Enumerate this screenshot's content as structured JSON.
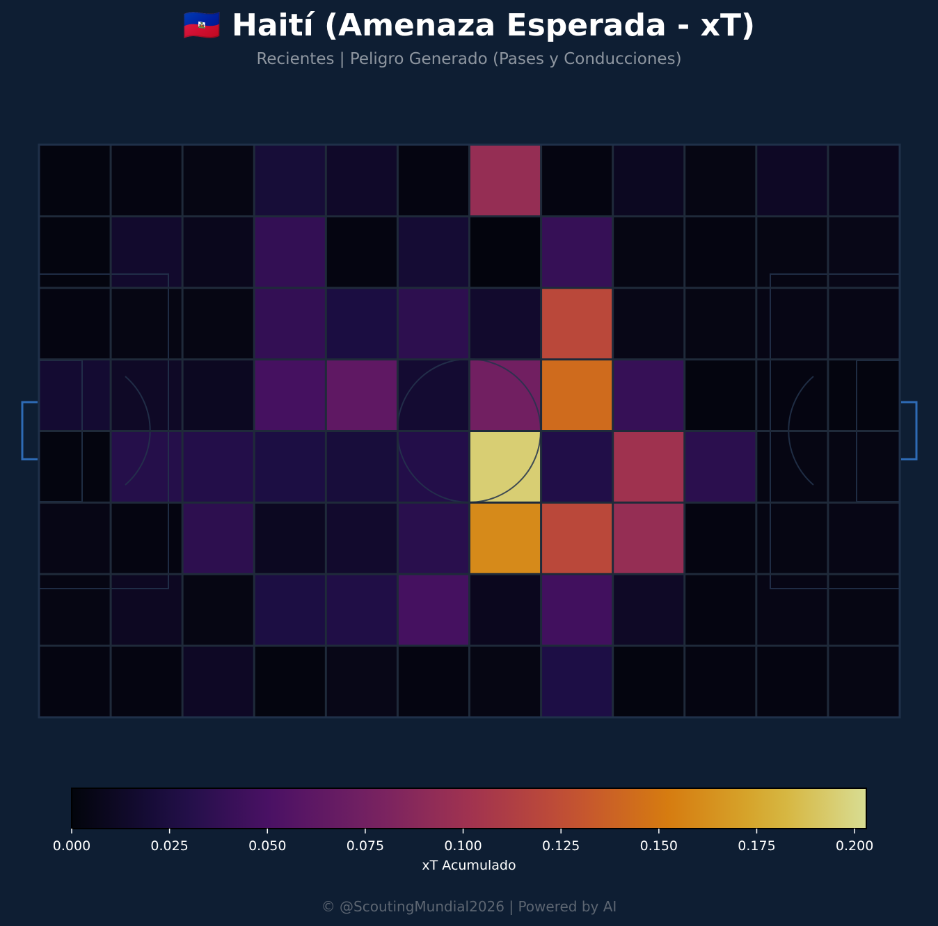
{
  "title": "🇭🇹 Haití (Amenaza Esperada - xT)",
  "subtitle": "Recientes | Peligro Generado (Pases y Conducciones)",
  "footer": "© @ScoutingMundial2026 | Powered by AI",
  "chart_data": {
    "type": "heatmap",
    "colormap": "inferno",
    "grid": {
      "cols": 12,
      "rows": 8
    },
    "vmin": 0,
    "vmax": 0.203,
    "values": [
      [
        0.002,
        0.003,
        0.004,
        0.021,
        0.014,
        0.003,
        0.095,
        0.003,
        0.01,
        0.004,
        0.012,
        0.008
      ],
      [
        0.002,
        0.016,
        0.008,
        0.038,
        0.003,
        0.019,
        0.001,
        0.04,
        0.004,
        0.003,
        0.004,
        0.006
      ],
      [
        0.003,
        0.004,
        0.004,
        0.038,
        0.025,
        0.035,
        0.016,
        0.121,
        0.006,
        0.004,
        0.005,
        0.005
      ],
      [
        0.018,
        0.013,
        0.01,
        0.048,
        0.063,
        0.018,
        0.074,
        0.143,
        0.04,
        0.002,
        0.003,
        0.002
      ],
      [
        0.002,
        0.031,
        0.03,
        0.026,
        0.022,
        0.03,
        0.195,
        0.029,
        0.101,
        0.034,
        0.004,
        0.004
      ],
      [
        0.005,
        0.003,
        0.035,
        0.01,
        0.016,
        0.033,
        0.16,
        0.121,
        0.095,
        0.003,
        0.004,
        0.005
      ],
      [
        0.004,
        0.011,
        0.004,
        0.026,
        0.028,
        0.048,
        0.009,
        0.046,
        0.013,
        0.003,
        0.005,
        0.004
      ],
      [
        0.003,
        0.003,
        0.012,
        0.002,
        0.006,
        0.003,
        0.004,
        0.027,
        0.002,
        0.003,
        0.003,
        0.004
      ]
    ],
    "colorbar": {
      "label": "xT Acumulado",
      "ticks": [
        0.0,
        0.025,
        0.05,
        0.075,
        0.1,
        0.125,
        0.15,
        0.175,
        0.2
      ],
      "tick_labels": [
        "0.000",
        "0.025",
        "0.050",
        "0.075",
        "0.100",
        "0.125",
        "0.150",
        "0.175",
        "0.200"
      ],
      "orientation": "horizontal"
    },
    "xlabel": "",
    "ylabel": ""
  },
  "colors": {
    "background": "#0e1e33",
    "pitch_lines": "#1e2d44",
    "goal": "#2e6bb5"
  }
}
